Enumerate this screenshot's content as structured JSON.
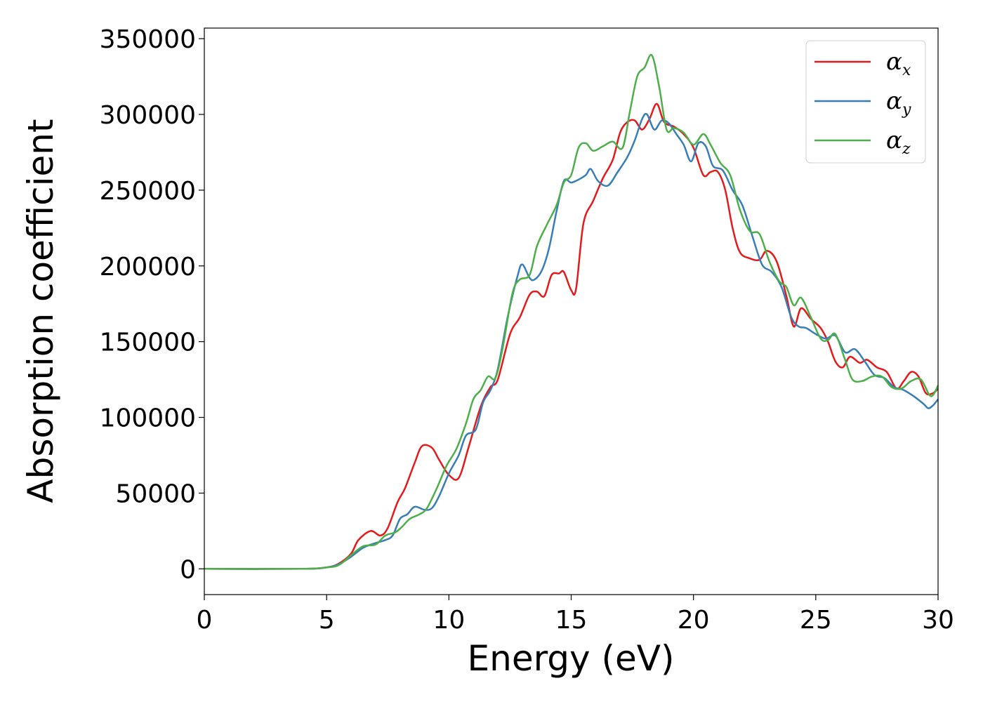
{
  "chart_data": {
    "type": "line",
    "title": "",
    "xlabel": "Energy (eV)",
    "ylabel": "Absorption coefficient",
    "xlim": [
      0,
      30
    ],
    "ylim": [
      -17000,
      357000
    ],
    "xticks": [
      0,
      5,
      10,
      15,
      20,
      25,
      30
    ],
    "yticks": [
      0,
      50000,
      100000,
      150000,
      200000,
      250000,
      300000,
      350000
    ],
    "grid": false,
    "legend_placement": "top-right",
    "series": [
      {
        "name": "αx",
        "symbol": "α",
        "subscript": "x",
        "color": "#e41a1c",
        "points": [
          [
            0,
            0
          ],
          [
            4,
            0
          ],
          [
            5,
            1000
          ],
          [
            5.5,
            3500
          ],
          [
            6,
            10000
          ],
          [
            6.3,
            19000
          ],
          [
            6.8,
            25000
          ],
          [
            7.2,
            22000
          ],
          [
            7.5,
            27000
          ],
          [
            7.9,
            44000
          ],
          [
            8.2,
            53000
          ],
          [
            8.6,
            70000
          ],
          [
            8.9,
            81000
          ],
          [
            9.3,
            80000
          ],
          [
            9.6,
            72000
          ],
          [
            10,
            62000
          ],
          [
            10.4,
            60000
          ],
          [
            10.8,
            80000
          ],
          [
            11.3,
            107000
          ],
          [
            11.7,
            120000
          ],
          [
            12,
            125000
          ],
          [
            12.5,
            155000
          ],
          [
            12.9,
            166000
          ],
          [
            13.3,
            181000
          ],
          [
            13.6,
            183000
          ],
          [
            13.9,
            180000
          ],
          [
            14.2,
            194000
          ],
          [
            14.5,
            195000
          ],
          [
            14.7,
            196000
          ],
          [
            15,
            184000
          ],
          [
            15.2,
            185000
          ],
          [
            15.5,
            228000
          ],
          [
            15.9,
            243000
          ],
          [
            16.3,
            258000
          ],
          [
            16.7,
            270000
          ],
          [
            17,
            288000
          ],
          [
            17.3,
            295000
          ],
          [
            17.6,
            296000
          ],
          [
            17.9,
            290000
          ],
          [
            18.2,
            297000
          ],
          [
            18.5,
            307000
          ],
          [
            18.8,
            295000
          ],
          [
            19.2,
            292000
          ],
          [
            19.6,
            287000
          ],
          [
            20,
            278000
          ],
          [
            20.4,
            260000
          ],
          [
            20.7,
            262000
          ],
          [
            21,
            262000
          ],
          [
            21.3,
            250000
          ],
          [
            21.6,
            225000
          ],
          [
            21.9,
            209000
          ],
          [
            22.3,
            205000
          ],
          [
            22.7,
            204000
          ],
          [
            23,
            210000
          ],
          [
            23.4,
            203000
          ],
          [
            23.8,
            180000
          ],
          [
            24.1,
            160000
          ],
          [
            24.4,
            172000
          ],
          [
            24.8,
            165000
          ],
          [
            25.2,
            159000
          ],
          [
            25.5,
            150000
          ],
          [
            25.8,
            137000
          ],
          [
            26.1,
            133000
          ],
          [
            26.4,
            140000
          ],
          [
            26.8,
            136000
          ],
          [
            27.1,
            138000
          ],
          [
            27.5,
            133000
          ],
          [
            27.9,
            130000
          ],
          [
            28.3,
            119000
          ],
          [
            28.6,
            124000
          ],
          [
            28.9,
            130000
          ],
          [
            29.2,
            127000
          ],
          [
            29.5,
            116000
          ],
          [
            29.8,
            116000
          ],
          [
            30,
            119000
          ]
        ]
      },
      {
        "name": "αy",
        "symbol": "α",
        "subscript": "y",
        "color": "#377eb8",
        "points": [
          [
            0,
            0
          ],
          [
            4,
            0
          ],
          [
            5,
            1000
          ],
          [
            5.5,
            3000
          ],
          [
            6,
            8000
          ],
          [
            6.5,
            14000
          ],
          [
            7,
            17000
          ],
          [
            7.4,
            19000
          ],
          [
            7.7,
            22000
          ],
          [
            8,
            33000
          ],
          [
            8.3,
            36000
          ],
          [
            8.6,
            41000
          ],
          [
            9,
            39000
          ],
          [
            9.3,
            40000
          ],
          [
            9.6,
            48000
          ],
          [
            10,
            63000
          ],
          [
            10.4,
            75000
          ],
          [
            10.7,
            88000
          ],
          [
            11.1,
            92000
          ],
          [
            11.4,
            110000
          ],
          [
            11.7,
            118000
          ],
          [
            12,
            132000
          ],
          [
            12.4,
            166000
          ],
          [
            12.8,
            193000
          ],
          [
            13,
            201000
          ],
          [
            13.3,
            192000
          ],
          [
            13.5,
            191000
          ],
          [
            13.8,
            197000
          ],
          [
            14.1,
            212000
          ],
          [
            14.4,
            236000
          ],
          [
            14.7,
            256000
          ],
          [
            15,
            255000
          ],
          [
            15.3,
            257000
          ],
          [
            15.6,
            260000
          ],
          [
            15.8,
            264000
          ],
          [
            16.1,
            256000
          ],
          [
            16.5,
            253000
          ],
          [
            16.9,
            262000
          ],
          [
            17.3,
            272000
          ],
          [
            17.6,
            283000
          ],
          [
            17.9,
            297000
          ],
          [
            18.1,
            300000
          ],
          [
            18.4,
            290000
          ],
          [
            18.7,
            296000
          ],
          [
            19,
            294000
          ],
          [
            19.3,
            287000
          ],
          [
            19.6,
            280000
          ],
          [
            19.9,
            269000
          ],
          [
            20.2,
            281000
          ],
          [
            20.5,
            279000
          ],
          [
            20.8,
            266000
          ],
          [
            21.2,
            263000
          ],
          [
            21.6,
            250000
          ],
          [
            22,
            240000
          ],
          [
            22.4,
            220000
          ],
          [
            22.8,
            201000
          ],
          [
            23.2,
            196000
          ],
          [
            23.6,
            186000
          ],
          [
            24,
            166000
          ],
          [
            24.3,
            160000
          ],
          [
            24.6,
            159000
          ],
          [
            25,
            155000
          ],
          [
            25.4,
            152000
          ],
          [
            25.8,
            154000
          ],
          [
            26.2,
            143000
          ],
          [
            26.6,
            145000
          ],
          [
            27,
            137000
          ],
          [
            27.4,
            128000
          ],
          [
            27.8,
            126000
          ],
          [
            28.2,
            120000
          ],
          [
            28.6,
            118000
          ],
          [
            29,
            114000
          ],
          [
            29.4,
            109000
          ],
          [
            29.6,
            106000
          ],
          [
            29.8,
            108000
          ],
          [
            30,
            112000
          ]
        ]
      },
      {
        "name": "αz",
        "symbol": "α",
        "subscript": "z",
        "color": "#4daf4a",
        "points": [
          [
            0,
            0
          ],
          [
            4,
            0
          ],
          [
            5,
            1000
          ],
          [
            5.5,
            2500
          ],
          [
            6,
            9000
          ],
          [
            6.5,
            15000
          ],
          [
            7,
            16000
          ],
          [
            7.4,
            22000
          ],
          [
            7.8,
            24000
          ],
          [
            8.1,
            28000
          ],
          [
            8.4,
            33000
          ],
          [
            8.8,
            36000
          ],
          [
            9.1,
            40000
          ],
          [
            9.5,
            53000
          ],
          [
            9.9,
            68000
          ],
          [
            10.3,
            79000
          ],
          [
            10.7,
            96000
          ],
          [
            11,
            112000
          ],
          [
            11.3,
            118000
          ],
          [
            11.6,
            127000
          ],
          [
            11.9,
            126000
          ],
          [
            12.2,
            146000
          ],
          [
            12.6,
            182000
          ],
          [
            12.9,
            191000
          ],
          [
            13.3,
            194000
          ],
          [
            13.6,
            213000
          ],
          [
            14,
            227000
          ],
          [
            14.4,
            240000
          ],
          [
            14.7,
            255000
          ],
          [
            15,
            260000
          ],
          [
            15.3,
            278000
          ],
          [
            15.6,
            281000
          ],
          [
            15.9,
            276000
          ],
          [
            16.3,
            279000
          ],
          [
            16.7,
            282000
          ],
          [
            17.1,
            278000
          ],
          [
            17.4,
            302000
          ],
          [
            17.7,
            325000
          ],
          [
            18,
            331000
          ],
          [
            18.3,
            339000
          ],
          [
            18.6,
            318000
          ],
          [
            18.9,
            290000
          ],
          [
            19.2,
            291000
          ],
          [
            19.6,
            288000
          ],
          [
            20,
            280000
          ],
          [
            20.4,
            287000
          ],
          [
            20.7,
            280000
          ],
          [
            21.1,
            268000
          ],
          [
            21.5,
            260000
          ],
          [
            21.9,
            237000
          ],
          [
            22.3,
            223000
          ],
          [
            22.7,
            221000
          ],
          [
            23.1,
            203000
          ],
          [
            23.5,
            190000
          ],
          [
            23.8,
            186000
          ],
          [
            24.1,
            174000
          ],
          [
            24.4,
            179000
          ],
          [
            24.8,
            166000
          ],
          [
            25.2,
            152000
          ],
          [
            25.5,
            151000
          ],
          [
            25.8,
            155000
          ],
          [
            26.2,
            138000
          ],
          [
            26.5,
            125000
          ],
          [
            26.9,
            124000
          ],
          [
            27.3,
            127000
          ],
          [
            27.7,
            127000
          ],
          [
            28.1,
            120000
          ],
          [
            28.5,
            119000
          ],
          [
            28.9,
            124000
          ],
          [
            29.3,
            125000
          ],
          [
            29.7,
            114000
          ],
          [
            30,
            121000
          ]
        ]
      }
    ]
  }
}
